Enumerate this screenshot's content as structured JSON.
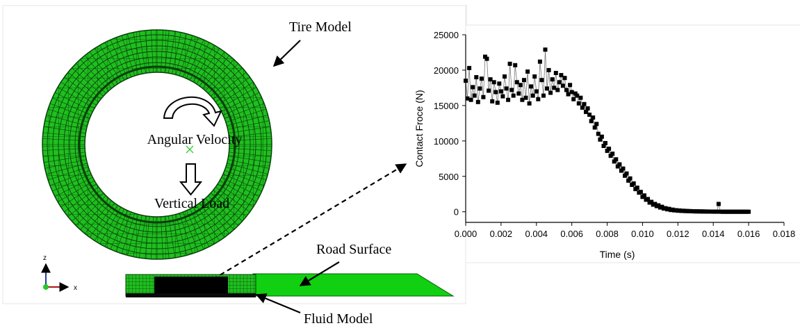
{
  "labels": {
    "tire_model": "Tire Model",
    "angular_velocity": "Angular Velocity",
    "vertical_load": "Vertical Load",
    "road_surface": "Road Surface",
    "fluid_model": "Fluid Model",
    "axis_z": "z",
    "axis_x": "x"
  },
  "colors": {
    "tire_mesh": "#1fbf1f",
    "mesh_lines": "#0a3d0a",
    "road": "#11d011",
    "fluid": "#000000",
    "axis_z": "#1f3f99",
    "axis_x": "#b01010"
  },
  "chart_data": {
    "type": "scatter",
    "xlabel": "Time (s)",
    "ylabel": "Contact Froce (N)",
    "xlim": [
      0,
      0.018
    ],
    "ylim": [
      -1500,
      25000
    ],
    "xticks": [
      "0.000",
      "0.002",
      "0.004",
      "0.006",
      "0.008",
      "0.010",
      "0.012",
      "0.014",
      "0.016",
      "0.018"
    ],
    "yticks": [
      "0",
      "5000",
      "10000",
      "15000",
      "20000",
      "25000"
    ],
    "marker": "square",
    "connected": true,
    "series": [
      {
        "points": [
          [
            0.0,
            18500
          ],
          [
            0.0001,
            16000
          ],
          [
            0.0002,
            20300
          ],
          [
            0.0003,
            15800
          ],
          [
            0.0004,
            17600
          ],
          [
            0.0005,
            16400
          ],
          [
            0.0006,
            19000
          ],
          [
            0.0007,
            15500
          ],
          [
            0.0008,
            17400
          ],
          [
            0.0009,
            18800
          ],
          [
            0.001,
            16200
          ],
          [
            0.0011,
            21900
          ],
          [
            0.0012,
            21600
          ],
          [
            0.0013,
            17100
          ],
          [
            0.0014,
            18700
          ],
          [
            0.0015,
            15600
          ],
          [
            0.0016,
            18300
          ],
          [
            0.0017,
            16900
          ],
          [
            0.0018,
            15400
          ],
          [
            0.0019,
            18100
          ],
          [
            0.002,
            17000
          ],
          [
            0.0021,
            16300
          ],
          [
            0.0022,
            19100
          ],
          [
            0.0023,
            17400
          ],
          [
            0.0024,
            15800
          ],
          [
            0.0025,
            20900
          ],
          [
            0.0026,
            17200
          ],
          [
            0.0027,
            16400
          ],
          [
            0.0028,
            20700
          ],
          [
            0.0029,
            18300
          ],
          [
            0.003,
            16700
          ],
          [
            0.0031,
            17900
          ],
          [
            0.0032,
            15800
          ],
          [
            0.0033,
            18600
          ],
          [
            0.0034,
            16100
          ],
          [
            0.0035,
            19800
          ],
          [
            0.0036,
            15300
          ],
          [
            0.0037,
            17700
          ],
          [
            0.0038,
            16400
          ],
          [
            0.0039,
            19100
          ],
          [
            0.004,
            17000
          ],
          [
            0.0041,
            15900
          ],
          [
            0.0042,
            21200
          ],
          [
            0.0043,
            18600
          ],
          [
            0.0044,
            16400
          ],
          [
            0.0045,
            22900
          ],
          [
            0.0046,
            17400
          ],
          [
            0.0047,
            20000
          ],
          [
            0.0048,
            16800
          ],
          [
            0.0049,
            18700
          ],
          [
            0.005,
            17500
          ],
          [
            0.0051,
            19600
          ],
          [
            0.0052,
            17200
          ],
          [
            0.0053,
            18300
          ],
          [
            0.0054,
            19300
          ],
          [
            0.0055,
            17800
          ],
          [
            0.0056,
            18900
          ],
          [
            0.0057,
            17200
          ],
          [
            0.0058,
            16600
          ],
          [
            0.0059,
            17900
          ],
          [
            0.006,
            16900
          ],
          [
            0.0061,
            15900
          ],
          [
            0.0062,
            16700
          ],
          [
            0.0063,
            16400
          ],
          [
            0.0064,
            15300
          ],
          [
            0.0065,
            16100
          ],
          [
            0.0066,
            14700
          ],
          [
            0.0067,
            15200
          ],
          [
            0.0068,
            14100
          ],
          [
            0.0069,
            14600
          ],
          [
            0.007,
            13700
          ],
          [
            0.0071,
            12800
          ],
          [
            0.0072,
            13300
          ],
          [
            0.0073,
            11900
          ],
          [
            0.0074,
            12400
          ],
          [
            0.0075,
            11000
          ],
          [
            0.0076,
            10200
          ],
          [
            0.0077,
            10600
          ],
          [
            0.0078,
            9300
          ],
          [
            0.0079,
            9700
          ],
          [
            0.008,
            8600
          ],
          [
            0.0081,
            8900
          ],
          [
            0.0082,
            7900
          ],
          [
            0.0083,
            8200
          ],
          [
            0.0084,
            7100
          ],
          [
            0.0085,
            7400
          ],
          [
            0.0086,
            6400
          ],
          [
            0.0087,
            6700
          ],
          [
            0.0088,
            5800
          ],
          [
            0.0089,
            6100
          ],
          [
            0.009,
            5100
          ],
          [
            0.0091,
            5400
          ],
          [
            0.0092,
            4400
          ],
          [
            0.0093,
            4700
          ],
          [
            0.0094,
            3800
          ],
          [
            0.0095,
            4000
          ],
          [
            0.0096,
            3200
          ],
          [
            0.0097,
            3400
          ],
          [
            0.0098,
            2700
          ],
          [
            0.0099,
            2800
          ],
          [
            0.01,
            2100
          ],
          [
            0.0101,
            2300
          ],
          [
            0.0102,
            1700
          ],
          [
            0.0103,
            1800
          ],
          [
            0.0104,
            1300
          ],
          [
            0.0105,
            1400
          ],
          [
            0.0106,
            1000
          ],
          [
            0.0107,
            1100
          ],
          [
            0.0108,
            800
          ],
          [
            0.0109,
            900
          ],
          [
            0.011,
            600
          ],
          [
            0.0111,
            700
          ],
          [
            0.0112,
            450
          ],
          [
            0.0113,
            500
          ],
          [
            0.0114,
            350
          ],
          [
            0.0115,
            400
          ],
          [
            0.0116,
            250
          ],
          [
            0.0117,
            300
          ],
          [
            0.0118,
            200
          ],
          [
            0.0119,
            220
          ],
          [
            0.012,
            150
          ],
          [
            0.0121,
            180
          ],
          [
            0.0122,
            120
          ],
          [
            0.0123,
            140
          ],
          [
            0.0124,
            100
          ],
          [
            0.0125,
            110
          ],
          [
            0.0126,
            80
          ],
          [
            0.0127,
            90
          ],
          [
            0.0128,
            70
          ],
          [
            0.0129,
            60
          ],
          [
            0.013,
            50
          ],
          [
            0.0131,
            60
          ],
          [
            0.0132,
            40
          ],
          [
            0.0133,
            50
          ],
          [
            0.0134,
            30
          ],
          [
            0.0135,
            40
          ],
          [
            0.0136,
            25
          ],
          [
            0.0137,
            30
          ],
          [
            0.0138,
            20
          ],
          [
            0.0139,
            25
          ],
          [
            0.014,
            15
          ],
          [
            0.0141,
            20
          ],
          [
            0.0142,
            10
          ],
          [
            0.0143,
            1100
          ],
          [
            0.0144,
            10
          ],
          [
            0.0145,
            5
          ],
          [
            0.0146,
            5
          ],
          [
            0.0147,
            5
          ],
          [
            0.0148,
            0
          ],
          [
            0.0149,
            0
          ],
          [
            0.015,
            0
          ],
          [
            0.0151,
            0
          ],
          [
            0.0152,
            0
          ],
          [
            0.0153,
            0
          ],
          [
            0.0154,
            0
          ],
          [
            0.0155,
            0
          ],
          [
            0.0156,
            0
          ],
          [
            0.0157,
            0
          ],
          [
            0.0158,
            0
          ],
          [
            0.0159,
            0
          ],
          [
            0.016,
            0
          ]
        ]
      }
    ]
  }
}
